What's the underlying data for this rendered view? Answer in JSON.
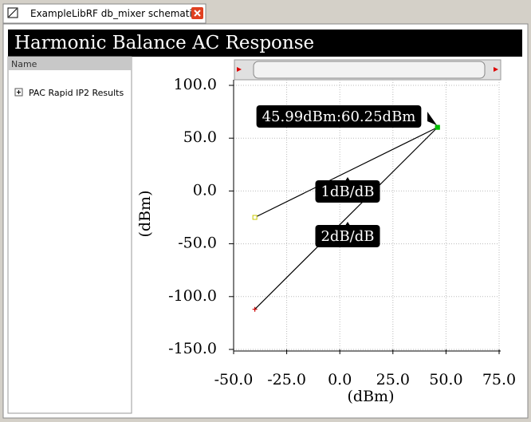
{
  "tab": {
    "title": "ExampleLibRF db_mixer schematic"
  },
  "header": {
    "title": "Harmonic Balance AC Response"
  },
  "sidebar": {
    "column_header": "Name",
    "items": [
      "PAC Rapid IP2 Results"
    ]
  },
  "chart_data": {
    "type": "line",
    "xlabel": "(dBm)",
    "ylabel": "(dBm)",
    "series": [
      {
        "x": [
          -40,
          45.99
        ],
        "values": [
          -25,
          60.25
        ],
        "color": "#000000",
        "marker_colors": [
          "#c8c800",
          "#00c000"
        ]
      },
      {
        "x": [
          -40,
          45.99
        ],
        "values": [
          -112,
          60.25
        ],
        "color": "#000000",
        "marker_colors": [
          "#cc0000",
          "#00c000"
        ]
      }
    ],
    "annotations": [
      "45.99dBm:60.25dBm",
      "1dB/dB",
      "2dB/dB"
    ],
    "xlim": [
      -50,
      75
    ],
    "xticks": [
      {
        "value": -50,
        "label": "-50.0"
      },
      {
        "value": -25,
        "label": "-25.0"
      },
      {
        "value": 0,
        "label": "0.0"
      },
      {
        "value": 25,
        "label": "25.0"
      },
      {
        "value": 50,
        "label": "50.0"
      },
      {
        "value": 75,
        "label": "75.0"
      }
    ],
    "ylim": [
      -150,
      100
    ],
    "yticks": [
      {
        "value": -150,
        "label": "-150.0"
      },
      {
        "value": -100,
        "label": "-100.0"
      },
      {
        "value": -50,
        "label": "-50.0"
      },
      {
        "value": 0,
        "label": "0.0"
      },
      {
        "value": 50,
        "label": "50.0"
      },
      {
        "value": 100,
        "label": "100.0"
      }
    ],
    "grid": true
  }
}
